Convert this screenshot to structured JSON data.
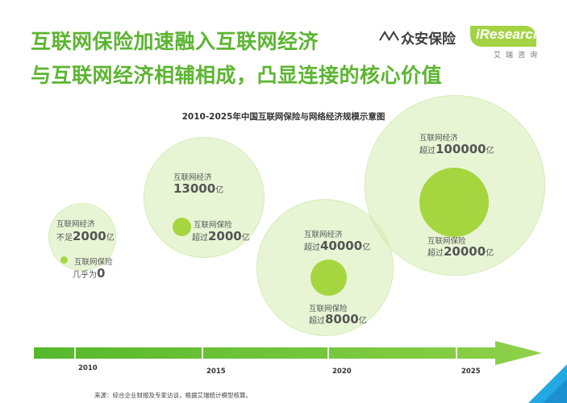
{
  "header": {
    "title_line1": "互联网保险加速融入互联网经济",
    "title_line2": "与互联网经济相辅相成，凸显连接的核心价值"
  },
  "logo": {
    "brand": "众安保险",
    "partner": "iResearch",
    "partner_sub": "艾瑞咨询"
  },
  "diagram": {
    "title": "2010-2025年中国互联网保险与网络经济规模示意图",
    "stages": [
      {
        "economy_label": "互联网经济",
        "economy_prefix": "不足",
        "economy_value": "2000",
        "economy_unit": "亿",
        "insurance_label": "互联网保险",
        "insurance_prefix": "几乎为",
        "insurance_value": "0",
        "insurance_unit": ""
      },
      {
        "economy_label": "互联网经济",
        "economy_prefix": "",
        "economy_value": "13000",
        "economy_unit": "亿",
        "insurance_label": "互联网保险",
        "insurance_prefix": "超过",
        "insurance_value": "2000",
        "insurance_unit": "亿"
      },
      {
        "economy_label": "互联网经济",
        "economy_prefix": "超过",
        "economy_value": "40000",
        "economy_unit": "亿",
        "insurance_label": "互联网保险",
        "insurance_prefix": "超过",
        "insurance_value": "8000",
        "insurance_unit": "亿"
      },
      {
        "economy_label": "互联网经济",
        "economy_prefix": "超过",
        "economy_value": "100000",
        "economy_unit": "亿",
        "insurance_label": "互联网保险",
        "insurance_prefix": "超过",
        "insurance_value": "20000",
        "insurance_unit": "亿"
      }
    ]
  },
  "timeline": {
    "years": [
      "2010",
      "2015",
      "2020",
      "2025"
    ]
  },
  "footer": {
    "source": "来源：综合企业财报及专家访谈，根据艾瑞统计模型核算。"
  },
  "colors": {
    "title_green": "#5cb531",
    "core_green": "#a5d640",
    "halo_green": "#d6ecb2",
    "arrow_green": "#6cc230"
  }
}
